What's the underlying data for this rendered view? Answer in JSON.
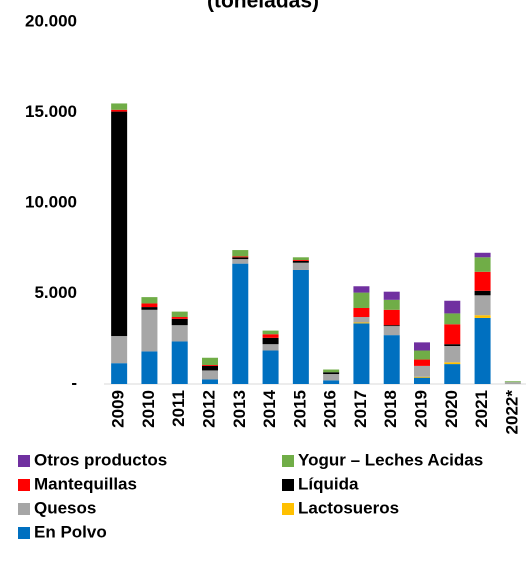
{
  "chart_data": {
    "type": "stacked-bar",
    "title": "(toneladas)",
    "categories": [
      "2009",
      "2010",
      "2011",
      "2012",
      "2013",
      "2014",
      "2015",
      "2016",
      "2017",
      "2018",
      "2019",
      "2020",
      "2021",
      "2022*"
    ],
    "series": [
      {
        "name": "Otros productos",
        "color": "#7030a0",
        "values": [
          0,
          0,
          0,
          0,
          0,
          0,
          0,
          0,
          350,
          450,
          450,
          700,
          250,
          0
        ]
      },
      {
        "name": "Yogur – Leches Acidas",
        "color": "#70ad47",
        "values": [
          350,
          350,
          300,
          400,
          350,
          200,
          150,
          150,
          850,
          550,
          500,
          600,
          800,
          50
        ]
      },
      {
        "name": "Mantequillas",
        "color": "#ff0000",
        "values": [
          100,
          200,
          100,
          50,
          50,
          200,
          50,
          0,
          500,
          850,
          350,
          1100,
          1050,
          0
        ]
      },
      {
        "name": "Líquida",
        "color": "#000000",
        "values": [
          12400,
          150,
          350,
          250,
          100,
          350,
          100,
          100,
          0,
          50,
          0,
          100,
          250,
          0
        ]
      },
      {
        "name": "Quesos",
        "color": "#a6a6a6",
        "values": [
          1500,
          2300,
          900,
          500,
          250,
          350,
          400,
          350,
          300,
          500,
          600,
          900,
          1100,
          100
        ]
      },
      {
        "name": "Lactosueros",
        "color": "#ffc000",
        "values": [
          0,
          0,
          0,
          0,
          0,
          0,
          0,
          0,
          50,
          0,
          50,
          100,
          150,
          0
        ]
      },
      {
        "name": "En Polvo",
        "color": "#0070c0",
        "values": [
          1150,
          1800,
          2350,
          250,
          6650,
          1850,
          6300,
          200,
          3350,
          2700,
          350,
          1100,
          3650,
          0
        ]
      }
    ],
    "ylim": [
      0,
      20000
    ],
    "yticks": [
      {
        "value": 0,
        "label": "-"
      },
      {
        "value": 5000,
        "label": "5.000"
      },
      {
        "value": 10000,
        "label": "10.000"
      },
      {
        "value": 15000,
        "label": "15.000"
      },
      {
        "value": 20000,
        "label": "20.000"
      }
    ]
  }
}
